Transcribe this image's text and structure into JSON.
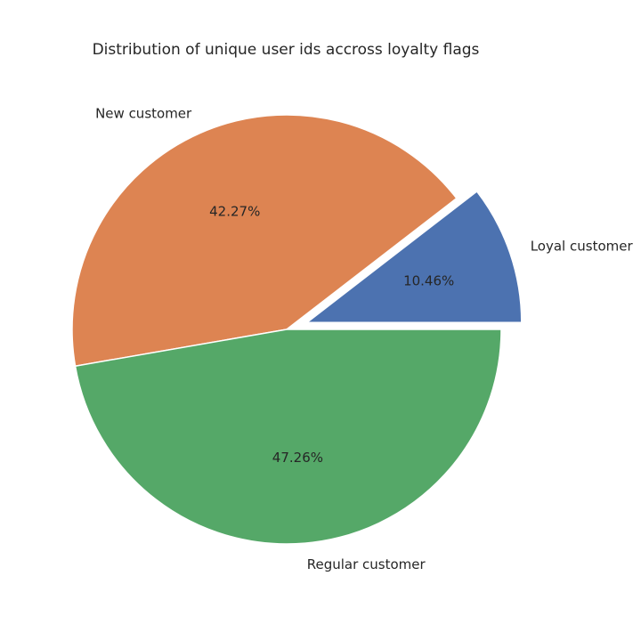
{
  "chart_data": {
    "type": "pie",
    "title": "Distribution of unique user ids accross loyalty flags",
    "slices": [
      {
        "label": "Loyal customer",
        "value": 10.46,
        "pct_label": "10.46%",
        "color": "#4c72b0",
        "explode": 0.1
      },
      {
        "label": "New customer",
        "value": 42.27,
        "pct_label": "42.27%",
        "color": "#dd8452",
        "explode": 0
      },
      {
        "label": "Regular customer",
        "value": 47.26,
        "pct_label": "47.26%",
        "color": "#55a868",
        "explode": 0
      }
    ],
    "start_angle": 0,
    "direction": "counterclockwise"
  }
}
